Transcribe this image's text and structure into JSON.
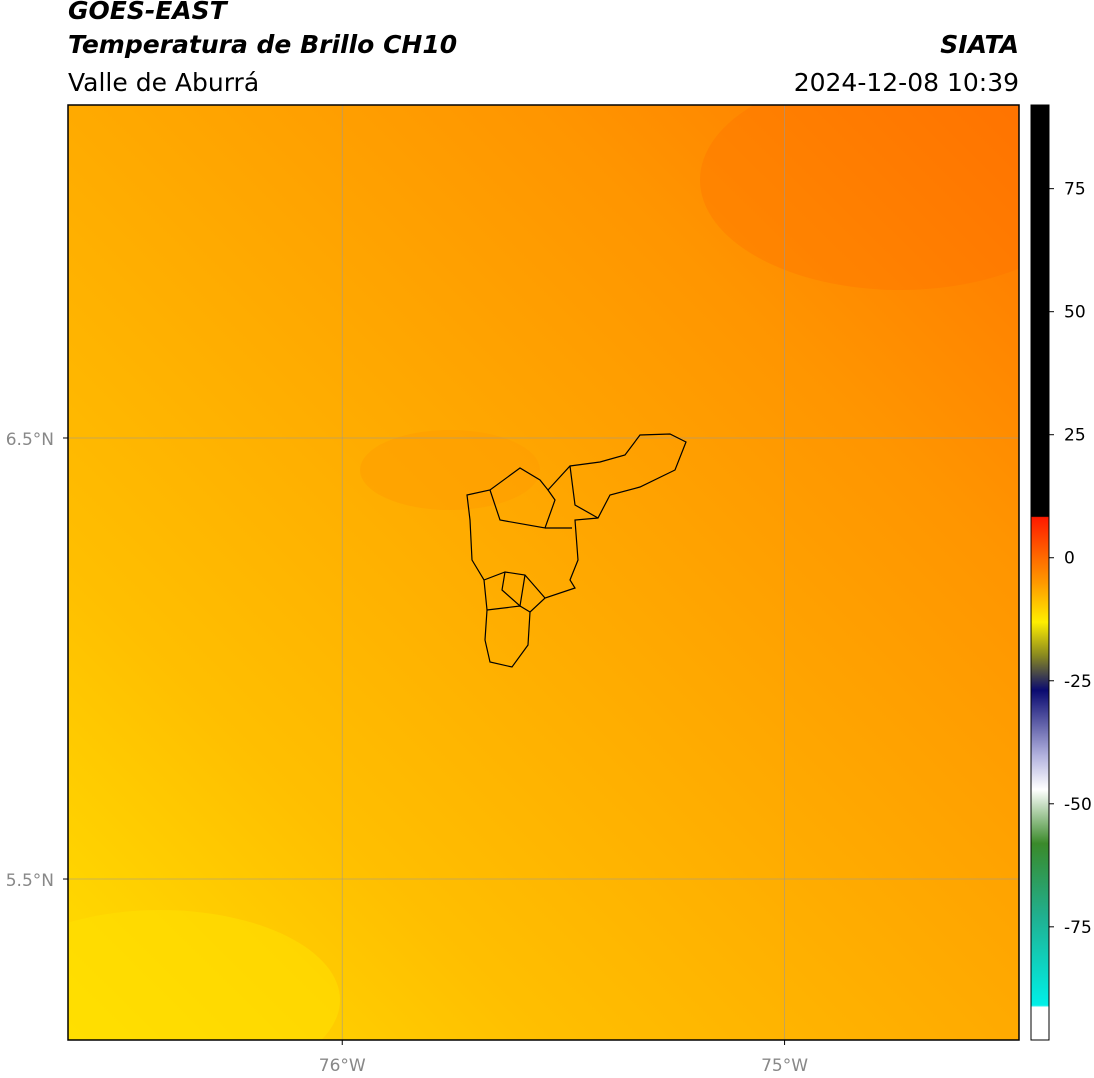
{
  "header": {
    "title": "GOES-EAST",
    "subtitle": "Temperatura de Brillo CH10",
    "region": "Valle de Aburrá",
    "source": "SIATA",
    "datetime": "2024-12-08 10:39"
  },
  "map": {
    "xlim": [
      -76.62,
      -74.47
    ],
    "ylim": [
      5.135,
      7.255
    ],
    "xticks": [
      {
        "value": -76,
        "label": "76°W"
      },
      {
        "value": -75,
        "label": "75°W"
      }
    ],
    "yticks": [
      {
        "value": 5.5,
        "label": "5.5°N"
      },
      {
        "value": 6.5,
        "label": "6.5°N"
      }
    ],
    "grid": true
  },
  "colorbar": {
    "lim": [
      -98,
      92
    ],
    "ticks": [
      -75,
      -50,
      -25,
      0,
      25,
      50,
      75
    ]
  }
}
